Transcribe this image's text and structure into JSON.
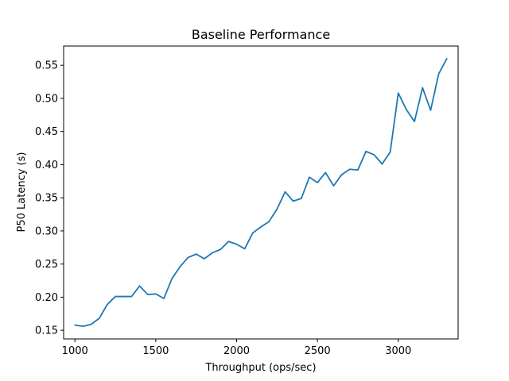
{
  "chart_data": {
    "type": "line",
    "title": "Baseline Performance",
    "xlabel": "Throughput (ops/sec)",
    "ylabel": "P50 Latency (s)",
    "xlim": [
      930,
      3370
    ],
    "ylim": [
      0.137,
      0.579
    ],
    "xticks": [
      1000,
      1500,
      2000,
      2500,
      3000
    ],
    "xtick_labels": [
      "1000",
      "1500",
      "2000",
      "2500",
      "3000"
    ],
    "yticks": [
      0.15,
      0.2,
      0.25,
      0.3,
      0.35,
      0.4,
      0.45,
      0.5,
      0.55
    ],
    "ytick_labels": [
      "0.15",
      "0.20",
      "0.25",
      "0.30",
      "0.35",
      "0.40",
      "0.45",
      "0.50",
      "0.55"
    ],
    "grid": false,
    "line_color": "#1f77b4",
    "series": [
      {
        "x": [
          1000,
          1050,
          1100,
          1150,
          1200,
          1250,
          1300,
          1350,
          1400,
          1450,
          1500,
          1550,
          1600,
          1650,
          1700,
          1750,
          1800,
          1850,
          1900,
          1950,
          2000,
          2050,
          2100,
          2150,
          2200,
          2250,
          2300,
          2350,
          2400,
          2450,
          2500,
          2550,
          2600,
          2650,
          2700,
          2750,
          2800,
          2850,
          2900,
          2950,
          3000,
          3050,
          3100,
          3150,
          3200,
          3250,
          3300
        ],
        "values": [
          0.158,
          0.156,
          0.159,
          0.168,
          0.189,
          0.201,
          0.201,
          0.201,
          0.217,
          0.204,
          0.205,
          0.198,
          0.228,
          0.246,
          0.26,
          0.265,
          0.258,
          0.267,
          0.272,
          0.284,
          0.28,
          0.273,
          0.297,
          0.306,
          0.314,
          0.333,
          0.359,
          0.345,
          0.349,
          0.381,
          0.373,
          0.388,
          0.368,
          0.385,
          0.393,
          0.392,
          0.42,
          0.415,
          0.401,
          0.419,
          0.508,
          0.483,
          0.465,
          0.516,
          0.482,
          0.537,
          0.56
        ]
      }
    ]
  }
}
